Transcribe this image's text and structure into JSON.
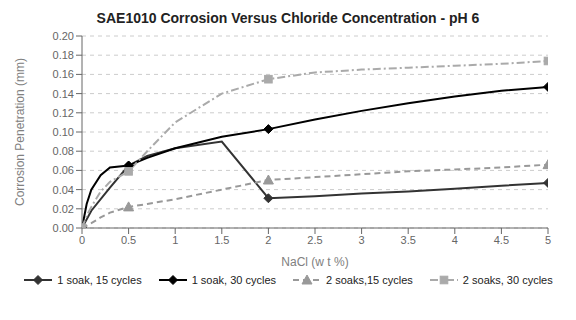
{
  "chart_data": {
    "type": "line",
    "title": "SAE1010 Corrosion Versus Chloride Concentration - pH 6",
    "x_label": "NaCl (w t %)",
    "y_label": "Corrosion Penetration (mm)",
    "xlim": [
      0,
      5
    ],
    "ylim": [
      0,
      0.2
    ],
    "xticks": [
      0,
      0.5,
      1,
      1.5,
      2,
      2.5,
      3,
      3.5,
      4,
      4.5,
      5
    ],
    "yticks": [
      {
        "value": 0,
        "label": "0.00"
      },
      {
        "value": 0.02,
        "label": "0.02"
      },
      {
        "value": 0.04,
        "label": "0.04"
      },
      {
        "value": 0.06,
        "label": "0.06"
      },
      {
        "value": 0.08,
        "label": "0.08"
      },
      {
        "value": 0.1,
        "label": "0.10"
      },
      {
        "value": 0.12,
        "label": "0.12"
      },
      {
        "value": 0.14,
        "label": "0.14"
      },
      {
        "value": 0.16,
        "label": "0.16"
      },
      {
        "value": 0.18,
        "label": "0.18"
      },
      {
        "value": 0.2,
        "label": "0.20"
      }
    ],
    "grid": "y",
    "legend": "bottom",
    "series": [
      {
        "name": "1 soak, 15 cycles",
        "color": "#333333",
        "line_style": "solid",
        "marker": "diamond",
        "x": [
          0,
          0.1,
          0.3,
          0.5,
          0.7,
          1.0,
          1.5,
          2.0,
          2.5,
          3.0,
          3.5,
          4.0,
          4.5,
          5.0
        ],
        "values": [
          0,
          0.018,
          0.042,
          0.065,
          0.075,
          0.083,
          0.09,
          0.031,
          0.033,
          0.036,
          0.038,
          0.041,
          0.044,
          0.047
        ],
        "marker_x": [
          0,
          0.5,
          2.0,
          5.0
        ]
      },
      {
        "name": "1 soak, 30 cycles",
        "color": "#000000",
        "line_style": "solid",
        "marker": "diamond",
        "x": [
          0,
          0.05,
          0.1,
          0.2,
          0.3,
          0.5,
          0.7,
          1.0,
          1.5,
          2.0,
          2.5,
          3.0,
          3.5,
          4.0,
          4.5,
          5.0
        ],
        "values": [
          0,
          0.025,
          0.04,
          0.055,
          0.063,
          0.065,
          0.073,
          0.083,
          0.095,
          0.103,
          0.113,
          0.122,
          0.13,
          0.137,
          0.143,
          0.147
        ],
        "marker_x": [
          0,
          0.5,
          2.0,
          5.0
        ]
      },
      {
        "name": "2 soaks,15 cycles",
        "color": "#999999",
        "line_style": "dashed",
        "marker": "triangle",
        "x": [
          0,
          0.1,
          0.2,
          0.3,
          0.5,
          0.7,
          1.0,
          1.5,
          2.0,
          2.5,
          3.0,
          3.5,
          4.0,
          4.5,
          5.0
        ],
        "values": [
          0,
          0.005,
          0.011,
          0.016,
          0.022,
          0.025,
          0.03,
          0.04,
          0.05,
          0.053,
          0.056,
          0.059,
          0.061,
          0.063,
          0.066
        ],
        "marker_x": [
          0,
          0.5,
          2.0,
          5.0
        ]
      },
      {
        "name": "2 soaks, 30 cycles",
        "color": "#aaaaaa",
        "line_style": "dashdot",
        "marker": "square",
        "x": [
          0,
          0.05,
          0.1,
          0.2,
          0.3,
          0.5,
          0.7,
          1.0,
          1.5,
          2.0,
          2.5,
          3.0,
          3.5,
          4.0,
          4.5,
          5.0
        ],
        "values": [
          0,
          0.013,
          0.022,
          0.038,
          0.048,
          0.059,
          0.08,
          0.11,
          0.14,
          0.155,
          0.162,
          0.165,
          0.167,
          0.169,
          0.171,
          0.174
        ],
        "marker_x": [
          0,
          0.5,
          2.0,
          5.0
        ]
      }
    ]
  }
}
